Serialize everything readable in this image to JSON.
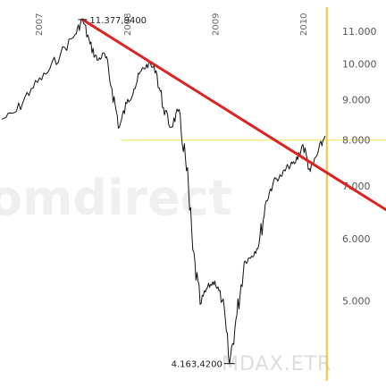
{
  "chart_data": {
    "type": "line",
    "title": "",
    "xlabel": "",
    "ylabel": "",
    "scale_y": "log",
    "ylim": [
      4000,
      11800
    ],
    "xlim": [
      "2006-08",
      "2010-05"
    ],
    "y_ticks": [
      {
        "value": 11000,
        "label": "11.000"
      },
      {
        "value": 10000,
        "label": "10.000"
      },
      {
        "value": 9000,
        "label": "9.000"
      },
      {
        "value": 8000,
        "label": "8.000"
      },
      {
        "value": 7000,
        "label": "7.000"
      },
      {
        "value": 6000,
        "label": "6.000"
      },
      {
        "value": 5000,
        "label": "5.000"
      }
    ],
    "x_ticks": [
      {
        "date": "2007-01",
        "label": "2007"
      },
      {
        "date": "2008-01",
        "label": "2008"
      },
      {
        "date": "2009-01",
        "label": "2009"
      },
      {
        "date": "2010-01",
        "label": "2010"
      }
    ],
    "series": [
      {
        "color": "#111111",
        "points": [
          {
            "x": "2006-08",
            "y": 8500
          },
          {
            "x": "2006-10",
            "y": 8700
          },
          {
            "x": "2006-12",
            "y": 9300
          },
          {
            "x": "2007-02",
            "y": 9700
          },
          {
            "x": "2007-04",
            "y": 10300
          },
          {
            "x": "2007-06",
            "y": 10900
          },
          {
            "x": "2007-07",
            "y": 11377.94
          },
          {
            "x": "2007-08",
            "y": 10600
          },
          {
            "x": "2007-09",
            "y": 10100
          },
          {
            "x": "2007-10",
            "y": 10300
          },
          {
            "x": "2007-11",
            "y": 9300
          },
          {
            "x": "2007-12",
            "y": 8300
          },
          {
            "x": "2008-01",
            "y": 8900
          },
          {
            "x": "2008-02",
            "y": 9300
          },
          {
            "x": "2008-03",
            "y": 9800
          },
          {
            "x": "2008-04",
            "y": 10000
          },
          {
            "x": "2008-05",
            "y": 9800
          },
          {
            "x": "2008-06",
            "y": 8800
          },
          {
            "x": "2008-07",
            "y": 8300
          },
          {
            "x": "2008-08",
            "y": 8700
          },
          {
            "x": "2008-09",
            "y": 7600
          },
          {
            "x": "2008-10",
            "y": 5800
          },
          {
            "x": "2008-11",
            "y": 4950
          },
          {
            "x": "2008-12",
            "y": 5200
          },
          {
            "x": "2009-01",
            "y": 5300
          },
          {
            "x": "2009-02",
            "y": 5000
          },
          {
            "x": "2009-03",
            "y": 4163.42
          },
          {
            "x": "2009-04",
            "y": 4800
          },
          {
            "x": "2009-05",
            "y": 5600
          },
          {
            "x": "2009-06",
            "y": 5700
          },
          {
            "x": "2009-07",
            "y": 5900
          },
          {
            "x": "2009-08",
            "y": 6700
          },
          {
            "x": "2009-09",
            "y": 7100
          },
          {
            "x": "2009-10",
            "y": 7200
          },
          {
            "x": "2009-11",
            "y": 7400
          },
          {
            "x": "2009-12",
            "y": 7500
          },
          {
            "x": "2010-01",
            "y": 7900
          },
          {
            "x": "2010-02",
            "y": 7300
          },
          {
            "x": "2010-03",
            "y": 7700
          },
          {
            "x": "2010-04",
            "y": 8100
          }
        ]
      }
    ],
    "trendline": {
      "color": "#dd2222",
      "start": {
        "x": "2007-07",
        "y": 11377.94
      },
      "end": {
        "x": "2010-05",
        "y": 7200
      }
    },
    "reference_line": {
      "color": "#e8e85a",
      "y": 8000
    },
    "current_date_line": {
      "color": "#f5c242",
      "x": "2010-04"
    },
    "annotations": [
      {
        "kind": "high",
        "label": "11.377,9400",
        "x": "2007-07",
        "y": 11377.94
      },
      {
        "kind": "low",
        "label": "4.163,4200",
        "x": "2009-03",
        "y": 4163.42
      }
    ],
    "watermark": {
      "brand": "omdirect",
      "symbol": "MDAX.ETR"
    },
    "grid": false,
    "legend": "none"
  }
}
